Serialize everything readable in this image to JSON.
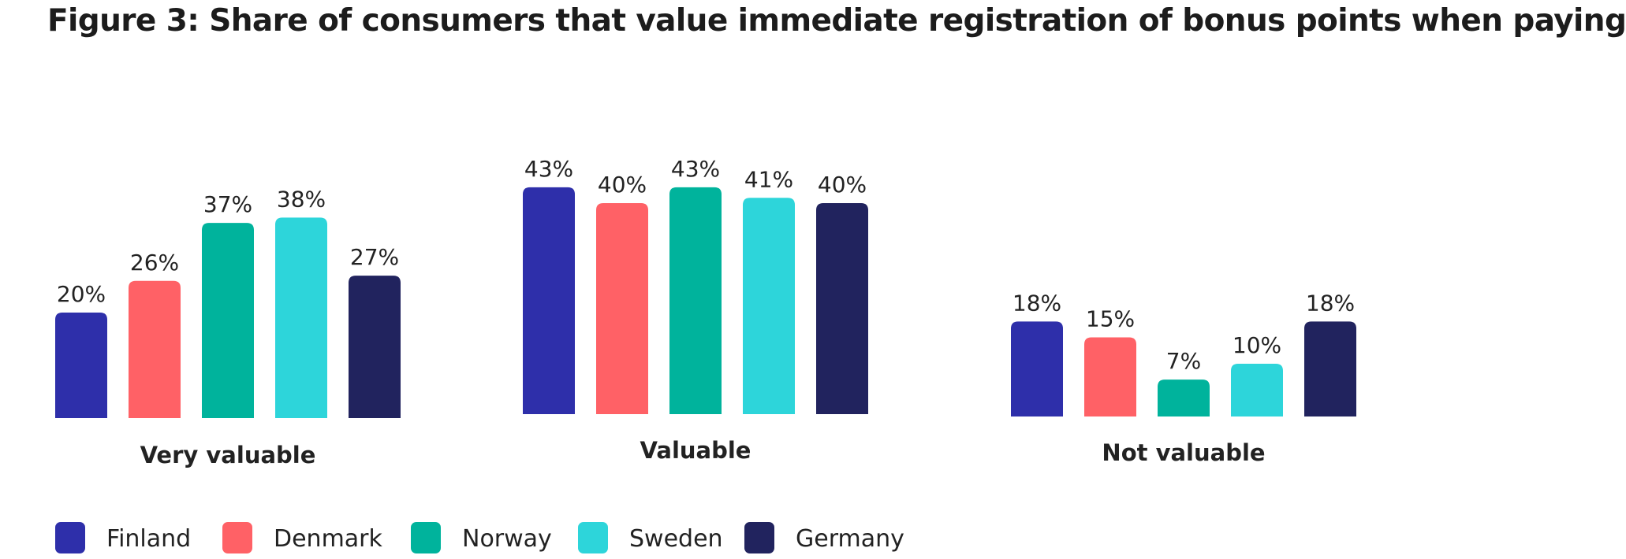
{
  "chart_data": {
    "type": "bar",
    "title": "Figure 3: Share of consumers that value immediate registration of bonus points when paying",
    "categories": [
      "Very valuable",
      "Valuable",
      "Not valuable"
    ],
    "series": [
      {
        "name": "Finland",
        "color": "#2E2FAA",
        "values": [
          20,
          43,
          18
        ],
        "labels": [
          "20%",
          "43%",
          "18%"
        ]
      },
      {
        "name": "Denmark",
        "color": "#FF6166",
        "values": [
          26,
          40,
          15
        ],
        "labels": [
          "26%",
          "40%",
          "15%"
        ]
      },
      {
        "name": "Norway",
        "color": "#00B39C",
        "values": [
          37,
          43,
          7
        ],
        "labels": [
          "37%",
          "43%",
          "7%"
        ]
      },
      {
        "name": "Sweden",
        "color": "#2DD5DA",
        "values": [
          38,
          41,
          10
        ],
        "labels": [
          "38%",
          "41%",
          "10%"
        ]
      },
      {
        "name": "Germany",
        "color": "#21235E",
        "values": [
          27,
          40,
          18
        ],
        "labels": [
          "27%",
          "40%",
          "18%"
        ]
      }
    ],
    "legend_position": "bottom-left",
    "grid": false,
    "ylim": [
      0,
      45
    ]
  }
}
